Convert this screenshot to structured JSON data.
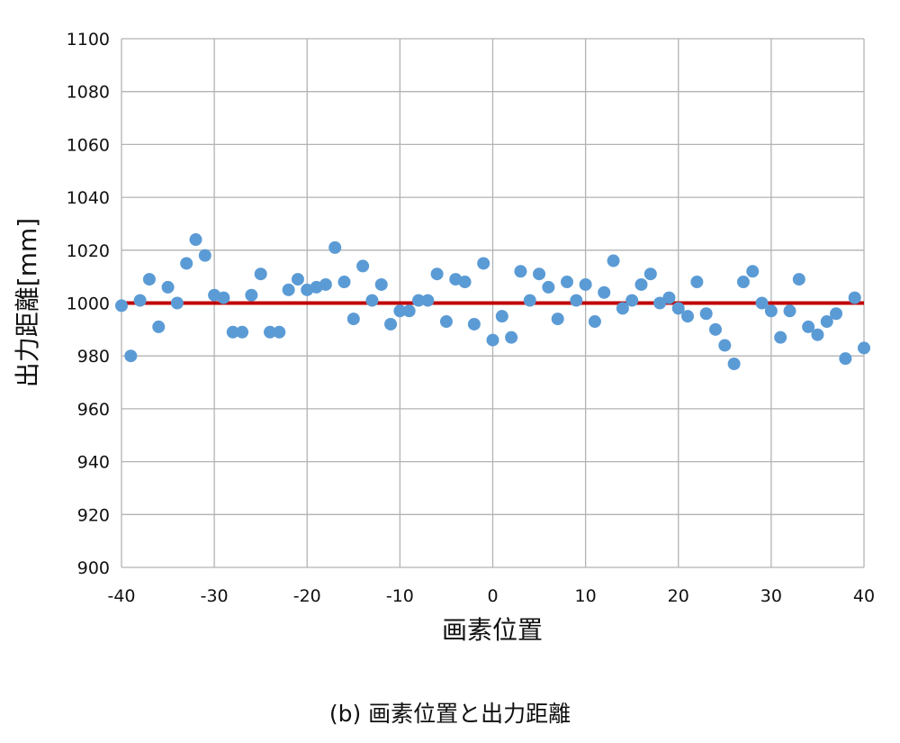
{
  "chart_data": {
    "type": "scatter",
    "xlabel": "画素位置",
    "ylabel": "出力距離[mm]",
    "caption": "(b) 画素位置と出力距離",
    "xlim": [
      -40,
      40
    ],
    "ylim": [
      900,
      1100
    ],
    "x_ticks": [
      -40,
      -30,
      -20,
      -10,
      0,
      10,
      20,
      30,
      40
    ],
    "y_ticks": [
      900,
      920,
      940,
      960,
      980,
      1000,
      1020,
      1040,
      1060,
      1080,
      1100
    ],
    "grid": true,
    "legend": "none",
    "series": [
      {
        "kind": "points",
        "color": "#5b9bd5",
        "x": [
          -40,
          -39,
          -38,
          -37,
          -36,
          -35,
          -34,
          -33,
          -32,
          -31,
          -30,
          -29,
          -28,
          -27,
          -26,
          -25,
          -24,
          -23,
          -22,
          -21,
          -20,
          -19,
          -18,
          -17,
          -16,
          -15,
          -14,
          -13,
          -12,
          -11,
          -10,
          -9,
          -8,
          -7,
          -6,
          -5,
          -4,
          -3,
          -2,
          -1,
          0,
          1,
          2,
          3,
          4,
          5,
          6,
          7,
          8,
          9,
          10,
          11,
          12,
          13,
          14,
          15,
          16,
          17,
          18,
          19,
          20,
          21,
          22,
          23,
          24,
          25,
          26,
          27,
          28,
          29,
          30,
          31,
          32,
          33,
          34,
          35,
          36,
          37,
          38,
          39,
          40
        ],
        "y": [
          999,
          980,
          1001,
          1009,
          991,
          1006,
          1000,
          1015,
          1024,
          1018,
          1003,
          1002,
          989,
          989,
          1003,
          1011,
          989,
          989,
          1005,
          1009,
          1005,
          1006,
          1007,
          1021,
          1008,
          994,
          1014,
          1001,
          1007,
          992,
          997,
          997,
          1001,
          1001,
          1011,
          993,
          1009,
          1008,
          992,
          1015,
          986,
          995,
          987,
          1012,
          1001,
          1011,
          1006,
          994,
          1008,
          1001,
          1007,
          993,
          1004,
          1016,
          998,
          1001,
          1007,
          1011,
          1000,
          1002,
          998,
          995,
          1008,
          996,
          990,
          984,
          977,
          1008,
          1012,
          1000,
          997,
          987,
          997,
          1009,
          991,
          988,
          993,
          996,
          979,
          1002,
          983
        ]
      },
      {
        "kind": "line",
        "color": "#c00000",
        "x": [
          -40,
          40
        ],
        "y": [
          1000,
          1000
        ]
      }
    ]
  }
}
